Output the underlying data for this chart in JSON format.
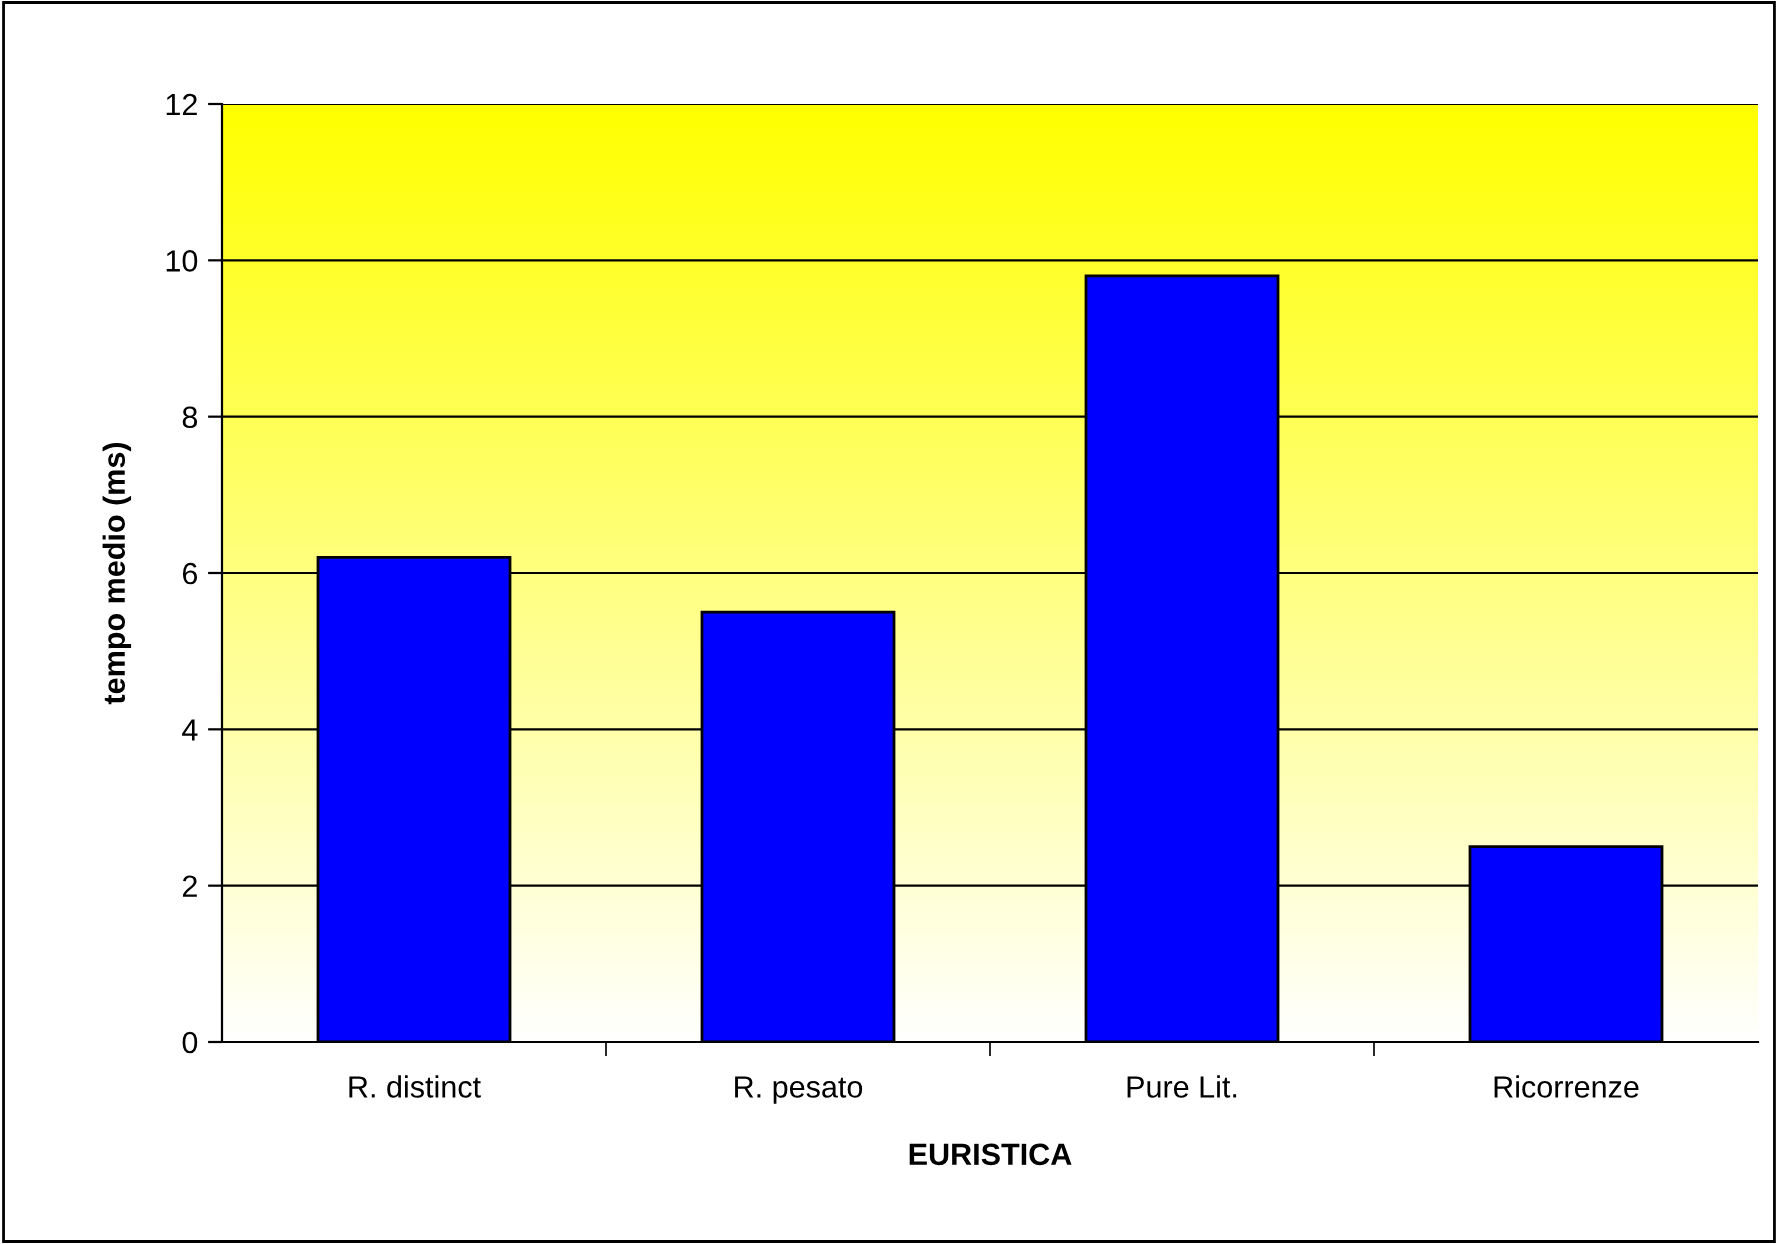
{
  "chart_data": {
    "type": "bar",
    "xlabel": "EURISTICA",
    "ylabel": "tempo medio (ms)",
    "categories": [
      "R. distinct",
      "R. pesato",
      "Pure Lit.",
      "Ricorrenze"
    ],
    "values": [
      6.2,
      5.5,
      9.8,
      2.5
    ],
    "color": "#0000ff",
    "ylim": [
      0,
      12
    ],
    "yticks": [
      0,
      2,
      4,
      6,
      8,
      10,
      12
    ],
    "grid": "y",
    "legend": false
  }
}
